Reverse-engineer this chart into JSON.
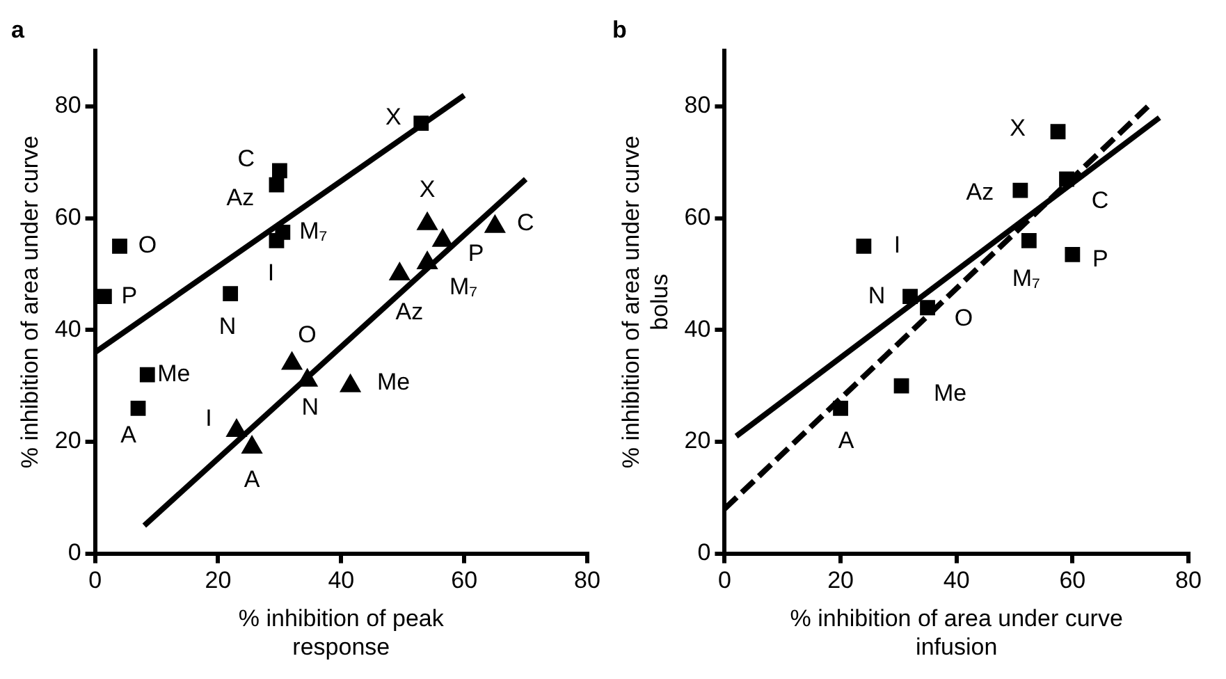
{
  "chart_data": [
    {
      "type": "scatter",
      "title": "a",
      "xlabel": "% inhibition of peak\nresponse",
      "ylabel": "% inhibition of area under curve",
      "xlim": [
        0,
        80
      ],
      "ylim": [
        0,
        90
      ],
      "xticks": [
        0,
        20,
        40,
        60,
        80
      ],
      "yticks": [
        0,
        20,
        40,
        60,
        80
      ],
      "grid": false,
      "series": [
        {
          "type": "scatter",
          "marker": "square",
          "color": "#000000",
          "x": [
            1.5,
            4,
            8.5,
            7,
            22,
            29.5,
            30.5,
            29.5,
            30,
            53
          ],
          "values": [
            46,
            55,
            32,
            26,
            46.5,
            56,
            57.5,
            66,
            68.5,
            77
          ]
        },
        {
          "type": "scatter",
          "marker": "triangle",
          "color": "#000000",
          "x": [
            23,
            25.5,
            32,
            34.5,
            41.5,
            49.5,
            54,
            54,
            56.5,
            65
          ],
          "values": [
            22,
            19,
            34,
            31,
            30,
            50,
            52,
            59,
            56,
            58.5
          ]
        },
        {
          "type": "line",
          "line_style": "solid",
          "color": "#000000",
          "x": [
            0,
            60
          ],
          "values": [
            36,
            82
          ]
        },
        {
          "type": "line",
          "line_style": "solid",
          "color": "#000000",
          "x": [
            8,
            70
          ],
          "values": [
            5,
            67
          ]
        }
      ],
      "annotations": [
        {
          "text": "P",
          "x": 1.5,
          "y": 46
        },
        {
          "text": "O",
          "x": 4,
          "y": 55
        },
        {
          "text": "Me",
          "x": 8.5,
          "y": 32
        },
        {
          "text": "A",
          "x": 7,
          "y": 26
        },
        {
          "text": "N",
          "x": 22,
          "y": 46.5
        },
        {
          "text": "I",
          "x": 29.5,
          "y": 56
        },
        {
          "text": "M₇",
          "x": 30.5,
          "y": 57.5
        },
        {
          "text": "Az",
          "x": 29.5,
          "y": 66
        },
        {
          "text": "C",
          "x": 30,
          "y": 68.5
        },
        {
          "text": "X",
          "x": 53,
          "y": 77
        },
        {
          "text": "I",
          "x": 23,
          "y": 22
        },
        {
          "text": "A",
          "x": 25.5,
          "y": 19
        },
        {
          "text": "O",
          "x": 32,
          "y": 34
        },
        {
          "text": "N",
          "x": 34.5,
          "y": 31
        },
        {
          "text": "Me",
          "x": 41.5,
          "y": 30
        },
        {
          "text": "Az",
          "x": 49.5,
          "y": 50
        },
        {
          "text": "M₇",
          "x": 54,
          "y": 52
        },
        {
          "text": "X",
          "x": 54,
          "y": 59
        },
        {
          "text": "P",
          "x": 56.5,
          "y": 56
        },
        {
          "text": "C",
          "x": 65,
          "y": 58.5
        }
      ]
    },
    {
      "type": "scatter",
      "title": "b",
      "xlabel": "% inhibition of area under curve\ninfusion",
      "ylabel": "% inhibition of area under curve\nbolus",
      "xlim": [
        0,
        80
      ],
      "ylim": [
        0,
        90
      ],
      "xticks": [
        0,
        20,
        40,
        60,
        80
      ],
      "yticks": [
        0,
        20,
        40,
        60,
        80
      ],
      "grid": false,
      "series": [
        {
          "type": "scatter",
          "marker": "square",
          "color": "#000000",
          "x": [
            20,
            30.5,
            24,
            32,
            35,
            51,
            52.5,
            57.5,
            59,
            60
          ],
          "values": [
            26,
            30,
            55,
            46,
            44,
            65,
            56,
            75.5,
            67,
            53.5
          ]
        },
        {
          "type": "line",
          "line_style": "solid",
          "color": "#000000",
          "x": [
            2,
            75
          ],
          "values": [
            21,
            78
          ]
        },
        {
          "type": "line",
          "line_style": "dashed",
          "color": "#000000",
          "x": [
            0,
            73
          ],
          "values": [
            8,
            80
          ]
        }
      ],
      "annotations": [
        {
          "text": "A",
          "x": 20,
          "y": 26
        },
        {
          "text": "Me",
          "x": 30.5,
          "y": 30
        },
        {
          "text": "I",
          "x": 24,
          "y": 55
        },
        {
          "text": "N",
          "x": 32,
          "y": 46
        },
        {
          "text": "O",
          "x": 35,
          "y": 44
        },
        {
          "text": "Az",
          "x": 51,
          "y": 65
        },
        {
          "text": "M₇",
          "x": 52.5,
          "y": 56
        },
        {
          "text": "X",
          "x": 57.5,
          "y": 75.5
        },
        {
          "text": "C",
          "x": 59,
          "y": 67
        },
        {
          "text": "P",
          "x": 60,
          "y": 53.5
        }
      ]
    }
  ]
}
